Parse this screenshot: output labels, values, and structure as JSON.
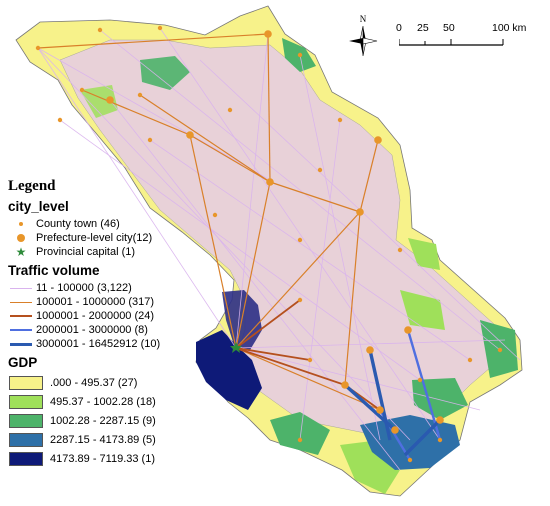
{
  "legend": {
    "title": "Legend",
    "city_level": {
      "heading": "city_level",
      "items": [
        {
          "label": "County town (46)",
          "symbol": "small-dot",
          "color": "#e8962a"
        },
        {
          "label": "Prefecture-level city(12)",
          "symbol": "large-dot",
          "color": "#e8962a"
        },
        {
          "label": "Provincial capital (1)",
          "symbol": "star",
          "color": "#2e8b3a"
        }
      ]
    },
    "traffic": {
      "heading": "Traffic volume",
      "items": [
        {
          "label": "11 - 100000 (3,122)",
          "color": "#d9b3ee",
          "width": 1
        },
        {
          "label": "100001 - 1000000 (317)",
          "color": "#d9802a",
          "width": 1.2
        },
        {
          "label": "1000001 - 2000000 (24)",
          "color": "#b5501e",
          "width": 1.8
        },
        {
          "label": "2000001 - 3000000 (8)",
          "color": "#4f6fe0",
          "width": 2.4
        },
        {
          "label": "3000001 - 16452912 (10)",
          "color": "#2a5ab0",
          "width": 3.6
        }
      ]
    },
    "gdp": {
      "heading": "GDP",
      "items": [
        {
          "label": ".000 - 495.37 (27)",
          "color": "#f7f28a"
        },
        {
          "label": "495.37 - 1002.28 (18)",
          "color": "#9fe05a"
        },
        {
          "label": "1002.28 - 2287.15 (9)",
          "color": "#4db36a"
        },
        {
          "label": "2287.15 - 4173.89 (5)",
          "color": "#2e70a8"
        },
        {
          "label": "4173.89 - 7119.33 (1)",
          "color": "#0e1a78"
        }
      ]
    }
  },
  "north_arrow": {
    "label": "N"
  },
  "scale_bar": {
    "ticks": [
      "0",
      "25",
      "50",
      "100 km"
    ]
  },
  "map": {
    "region_colors": {
      "low": "#f7f28a",
      "mid": "#9fe05a",
      "green": "#4db36a",
      "blue": "#2e70a8",
      "navy": "#0e1a78",
      "overlay": "#e6cce6"
    }
  }
}
